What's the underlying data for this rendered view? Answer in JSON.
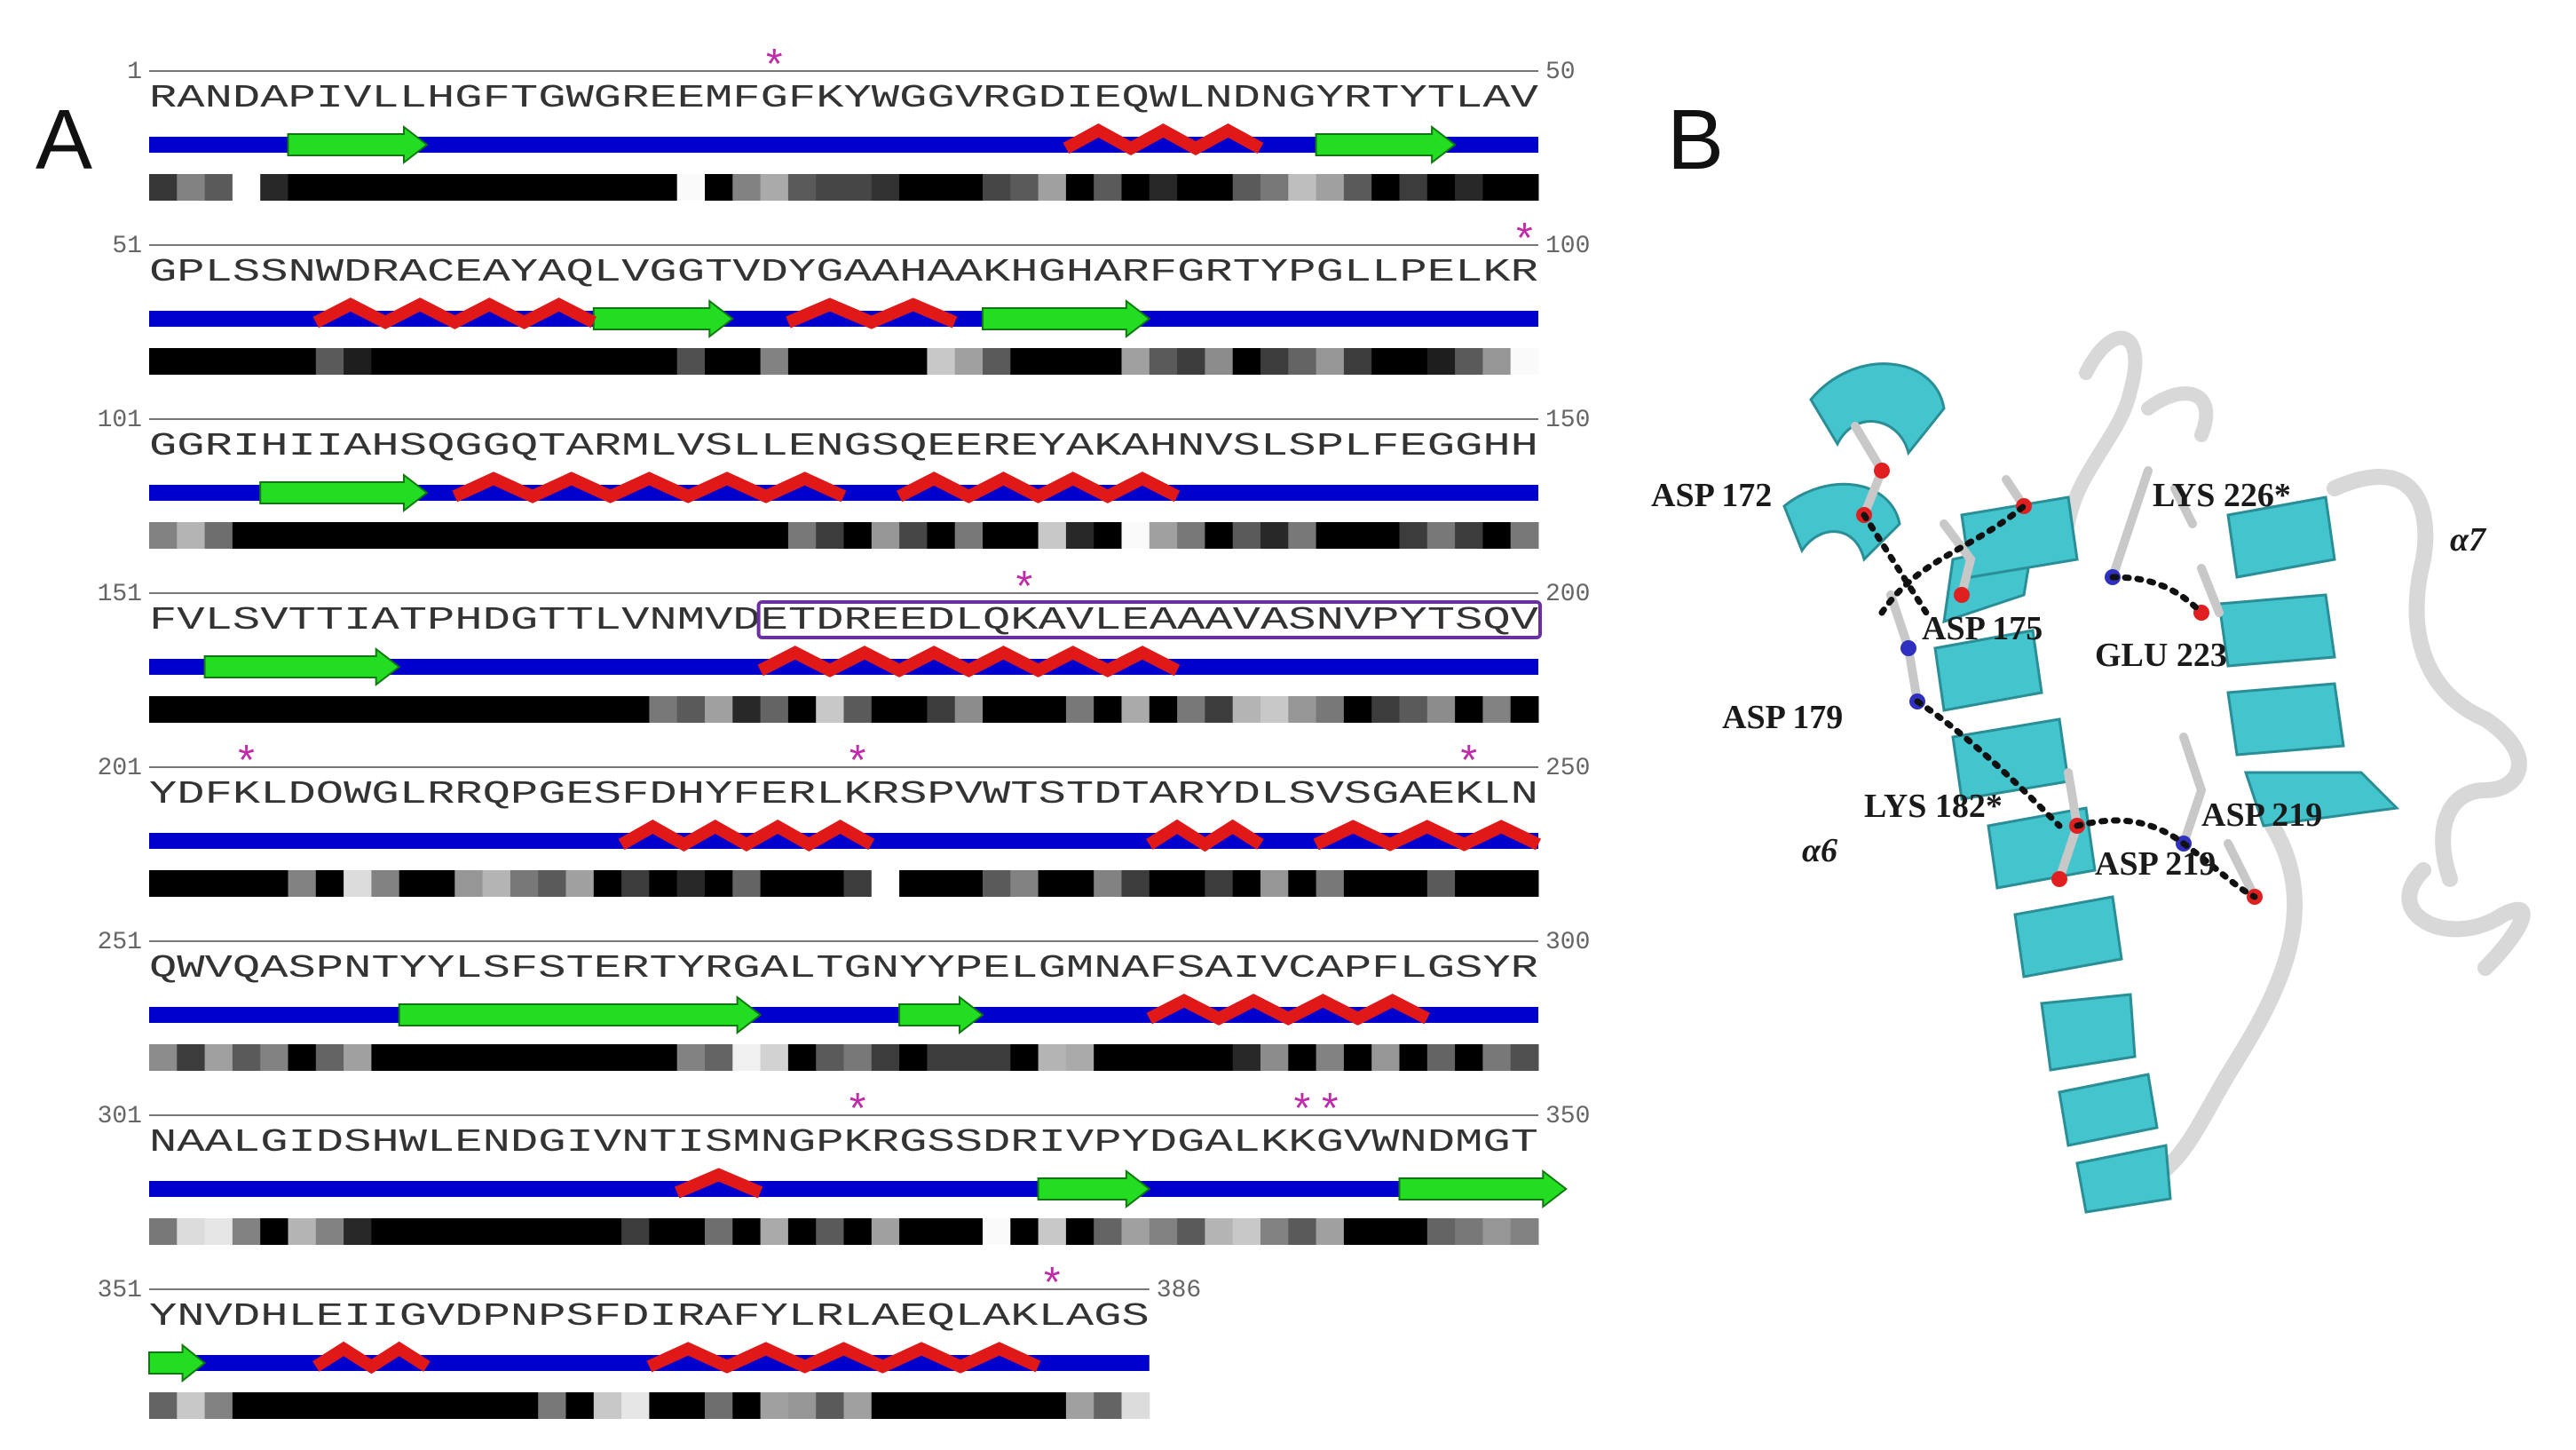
{
  "panels": {
    "a_label": "A",
    "b_label": "B"
  },
  "colors": {
    "coil": "#0000cc",
    "strand": "#22dd22",
    "helix": "#e01818",
    "star": "#c02ca8",
    "box": "#6a2fa0",
    "ribbon": "#44c4cc"
  },
  "sequence_rows": [
    {
      "start": "1",
      "end": "50",
      "seq": "RANDAPIVLLHGFTGWGREEMFGFKYWGGVRGDIEQWLNDNGYRTYTLAV",
      "stars": [
        22
      ],
      "strands": [
        [
          5,
          9
        ],
        [
          42,
          46
        ]
      ],
      "helices": [
        [
          33,
          39
        ]
      ],
      "conf": "55,130,90,255,40,0,0,0,0,0,0,0,0,0,0,0,0,0,0,250,0,130,170,90,70,70,50,0,0,0,70,90,160,0,90,0,40,0,0,90,120,190,160,90,0,60,0,40,0,0"
    },
    {
      "start": "51",
      "end": "100",
      "seq": "GPLSSNWDRACEAYAQLVGGTVDYGAAHAAKHGHARFGRTYPGLLPELKR",
      "stars": [
        49
      ],
      "strands": [
        [
          16,
          20
        ],
        [
          30,
          35
        ]
      ],
      "helices": [
        [
          6,
          15
        ],
        [
          23,
          28
        ]
      ],
      "conf": "0,0,0,0,0,0,90,30,0,0,0,0,0,0,0,0,0,0,0,80,0,0,130,0,0,0,0,0,200,160,90,0,0,0,0,160,90,60,140,0,60,100,150,60,0,0,30,90,150,250"
    },
    {
      "start": "101",
      "end": "150",
      "seq": "GGRIHIIAHSQGGQTARMLVSLLENGSQEEREYAKAHNVSLSPLFEGGHH",
      "stars": [],
      "strands": [
        [
          4,
          9
        ]
      ],
      "helices": [
        [
          11,
          24
        ],
        [
          27,
          36
        ]
      ],
      "conf": "130,180,110,0,0,0,0,0,0,0,0,0,0,0,0,0,0,0,0,0,0,0,0,120,60,0,150,70,0,120,0,0,200,40,0,250,160,120,0,90,40,120,0,0,0,60,120,60,0,120"
    },
    {
      "start": "151",
      "end": "200",
      "seq": "FVLSVTTIATPHDGTTLVNMVDETDREEDLQKAVLEAAAVASNVPYTSQV",
      "stars": [
        31
      ],
      "strands": [
        [
          2,
          8
        ]
      ],
      "helices": [
        [
          22,
          36
        ]
      ],
      "conf": "0,0,0,0,0,0,0,0,0,0,0,0,0,0,0,0,0,0,120,90,160,40,100,0,200,90,0,0,60,140,0,0,0,120,0,170,0,120,60,180,200,150,120,0,60,90,140,0,130,0"
    },
    {
      "start": "201",
      "end": "250",
      "seq": "YDFKLDOWGLRRQPGESFDHYFERLKRSPVWTSTDTARYDLSVSGAEKLN",
      "stars": [
        3,
        25,
        47
      ],
      "strands": [],
      "helices": [
        [
          17,
          25
        ],
        [
          36,
          39
        ],
        [
          42,
          49
        ]
      ],
      "conf": "0,0,0,0,0,130,0,220,130,0,0,150,180,120,90,160,0,60,0,40,0,100,0,0,0,60,255,0,0,0,90,130,0,0,130,60,0,0,60,0,150,0,120,0,0,0,90,0,0,0"
    },
    {
      "start": "251",
      "end": "300",
      "seq": "QWVQASPNTYYLSFSTERTYRGALTGNYYPELGMNAFSAIVCAPFLGSYR",
      "stars": [],
      "strands": [
        [
          9,
          21
        ],
        [
          27,
          29
        ]
      ],
      "helices": [
        [
          36,
          45
        ]
      ],
      "conf": "140,60,160,90,130,0,100,160,0,0,0,0,0,0,0,0,0,0,0,130,100,240,210,0,90,120,60,0,60,60,60,0,180,170,0,0,0,0,0,40,140,0,130,0,150,0,100,0,120,80"
    },
    {
      "start": "301",
      "end": "350",
      "seq": "NAALGIDSHWLENDGIVNTISMNGPKRGSSDRIVPYDGALKKGVWNDMGT",
      "stars": [
        25,
        41,
        42
      ],
      "strands": [
        [
          32,
          35
        ],
        [
          45,
          50
        ]
      ],
      "helices": [
        [
          19,
          21
        ]
      ],
      "conf": "120,220,230,130,0,180,130,40,0,0,0,0,0,0,0,0,0,60,0,0,110,0,170,0,90,0,160,0,0,0,250,0,200,0,100,160,130,90,180,200,130,90,160,0,0,0,100,120,150,130"
    },
    {
      "start": "351",
      "end": "386",
      "seq": "YNVDHLEIIGVDPNPSFDIRAFYLRLAEQLAKLAGS",
      "stars": [
        32
      ],
      "strands": [
        [
          0,
          1
        ]
      ],
      "helices": [
        [
          6,
          9
        ],
        [
          18,
          31
        ]
      ],
      "conf": "100,200,130,0,0,0,0,0,0,0,0,0,0,0,120,0,200,230,0,0,110,0,160,150,90,160,0,0,0,0,0,0,0,160,100,220"
    }
  ],
  "boxed_region": {
    "row": 3,
    "from": 22,
    "to": 49
  },
  "molecule_labels": [
    {
      "text": "ASP 172",
      "kind": "res"
    },
    {
      "text": "LYS 226*",
      "kind": "res"
    },
    {
      "text": "α7",
      "kind": "greek"
    },
    {
      "text": "ASP 175",
      "kind": "res"
    },
    {
      "text": "GLU 223",
      "kind": "res"
    },
    {
      "text": "ASP 179",
      "kind": "res"
    },
    {
      "text": "LYS 182*",
      "kind": "res"
    },
    {
      "text": "ASP 219",
      "kind": "res"
    },
    {
      "text": "α6",
      "kind": "greek"
    },
    {
      "text": "ASP 219",
      "kind": "res"
    }
  ]
}
